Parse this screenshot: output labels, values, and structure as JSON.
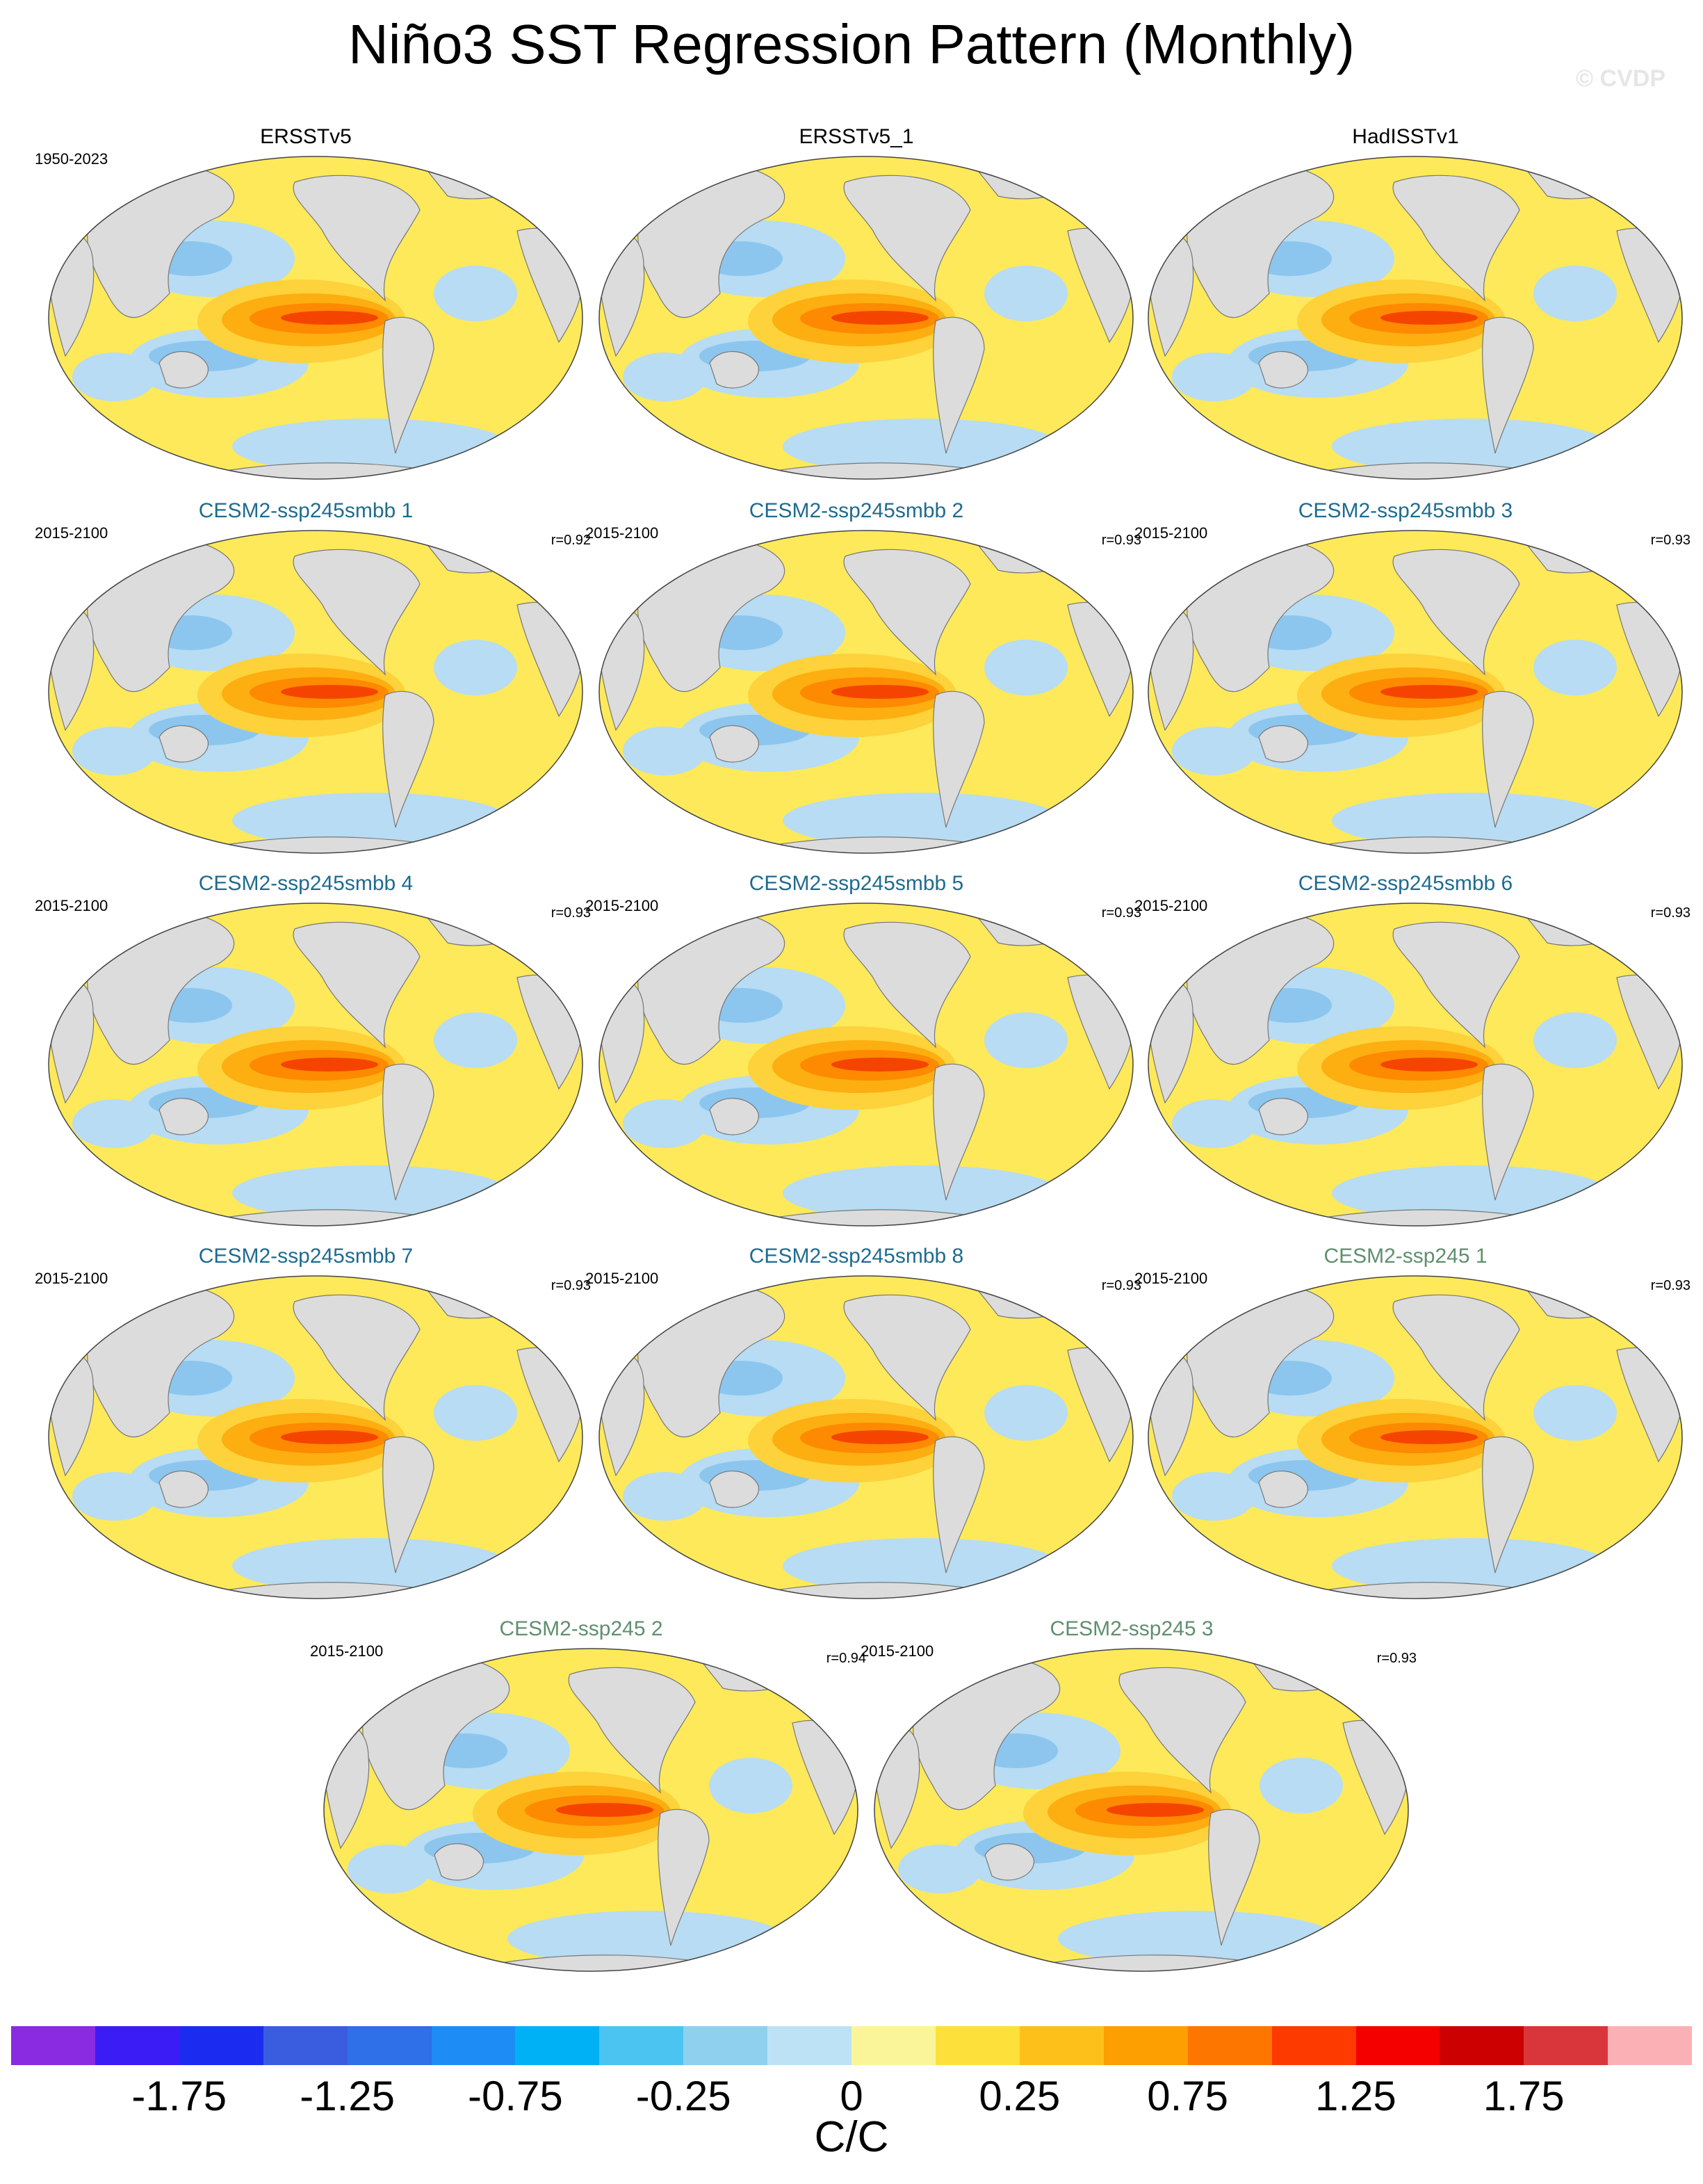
{
  "title": "Niño3 SST Regression Pattern (Monthly)",
  "watermark": "© CVDP",
  "panels": [
    {
      "title": "ERSSTv5",
      "title_color": "#000000",
      "period": "1950-2023",
      "corr": ""
    },
    {
      "title": "ERSSTv5_1",
      "title_color": "#000000",
      "period": "",
      "corr": ""
    },
    {
      "title": "HadISSTv1",
      "title_color": "#000000",
      "period": "",
      "corr": ""
    },
    {
      "title": "CESM2-ssp245smbb 1",
      "title_color": "#1f6b8f",
      "period": "2015-2100",
      "corr": "r=0.92"
    },
    {
      "title": "CESM2-ssp245smbb 2",
      "title_color": "#1f6b8f",
      "period": "2015-2100",
      "corr": "r=0.93"
    },
    {
      "title": "CESM2-ssp245smbb 3",
      "title_color": "#1f6b8f",
      "period": "2015-2100",
      "corr": "r=0.93"
    },
    {
      "title": "CESM2-ssp245smbb 4",
      "title_color": "#1f6b8f",
      "period": "2015-2100",
      "corr": "r=0.93"
    },
    {
      "title": "CESM2-ssp245smbb 5",
      "title_color": "#1f6b8f",
      "period": "2015-2100",
      "corr": "r=0.93"
    },
    {
      "title": "CESM2-ssp245smbb 6",
      "title_color": "#1f6b8f",
      "period": "2015-2100",
      "corr": "r=0.93"
    },
    {
      "title": "CESM2-ssp245smbb 7",
      "title_color": "#1f6b8f",
      "period": "2015-2100",
      "corr": "r=0.93"
    },
    {
      "title": "CESM2-ssp245smbb 8",
      "title_color": "#1f6b8f",
      "period": "2015-2100",
      "corr": "r=0.93"
    },
    {
      "title": "CESM2-ssp245 1",
      "title_color": "#5f8f6e",
      "period": "2015-2100",
      "corr": "r=0.93"
    },
    {
      "title": "CESM2-ssp245 2",
      "title_color": "#5f8f6e",
      "period": "2015-2100",
      "corr": "r=0.94"
    },
    {
      "title": "CESM2-ssp245 3",
      "title_color": "#5f8f6e",
      "period": "2015-2100",
      "corr": "r=0.93"
    }
  ],
  "colorbar": {
    "colors": [
      "#8a2be2",
      "#3b1cf5",
      "#1b2cf0",
      "#3a5de0",
      "#2f6fe8",
      "#1e8cf5",
      "#00b2f5",
      "#4cc4f2",
      "#8fd0ee",
      "#bde2f5",
      "#fbf59a",
      "#fde03a",
      "#fdc01a",
      "#fd9f00",
      "#fd7700",
      "#fd3a00",
      "#f50000",
      "#cc0000",
      "#d8363a",
      "#fbb0b6"
    ],
    "labels": [
      "-1.75",
      "-1.25",
      "-0.75",
      "-0.25",
      "0",
      "0.25",
      "0.75",
      "1.25",
      "1.75"
    ],
    "units": "C/C"
  }
}
